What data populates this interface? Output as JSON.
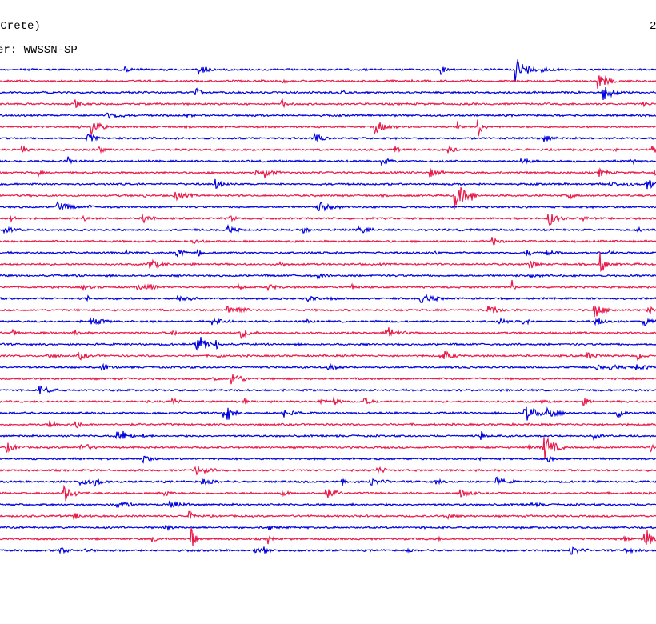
{
  "header": {
    "station": "(Crete)",
    "filter": "er: WWSSN-SP",
    "date": "2"
  },
  "trace_colors": [
    "#0000dd",
    "#e8194a"
  ]
}
